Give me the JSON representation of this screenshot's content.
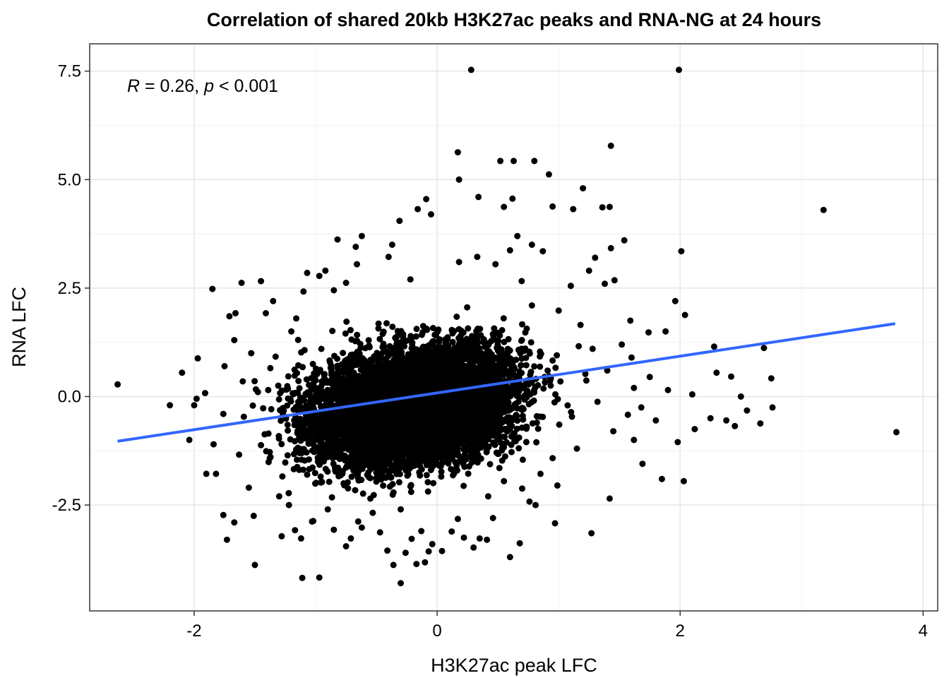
{
  "chart_data": {
    "type": "scatter",
    "title": "Correlation of shared 20kb H3K27ac peaks and RNA-NG  at 24 hours",
    "xlabel": "H3K27ac peak LFC",
    "ylabel": "RNA LFC",
    "annotation": {
      "r_symbol": "R",
      "r_text": " = 0.26, ",
      "p_symbol": "p",
      "p_text": " < 0.001"
    },
    "xlim": [
      -2.86,
      4.12
    ],
    "ylim": [
      -4.94,
      8.13
    ],
    "x_ticks": [
      {
        "value": -2,
        "label": "-2"
      },
      {
        "value": 0,
        "label": "0"
      },
      {
        "value": 2,
        "label": "2"
      },
      {
        "value": 4,
        "label": "4"
      }
    ],
    "y_ticks": [
      {
        "value": -2.5,
        "label": "-2.5"
      },
      {
        "value": 0,
        "label": "0.0"
      },
      {
        "value": 2.5,
        "label": "2.5"
      },
      {
        "value": 5,
        "label": "5.0"
      },
      {
        "value": 7.5,
        "label": "7.5"
      }
    ],
    "grid": true,
    "point_color": "#000000",
    "trend_color": "#3366FF",
    "trendline": {
      "x": [
        -2.63,
        3.77
      ],
      "y": [
        -1.03,
        1.68
      ]
    },
    "dense_core": [
      {
        "x": -0.25,
        "y": -0.05,
        "sx": 0.55,
        "sy": 0.8
      },
      {
        "x": 0.05,
        "y": 0.25,
        "sx": 0.45,
        "sy": 0.7
      },
      {
        "x": -0.55,
        "y": -0.55,
        "sx": 0.4,
        "sy": 0.75
      },
      {
        "x": -0.1,
        "y": -0.8,
        "sx": 0.45,
        "sy": 0.55
      }
    ],
    "points": [
      [
        -2.63,
        0.28
      ],
      [
        -2.04,
        -1.0
      ],
      [
        -1.97,
        0.88
      ],
      [
        -2.1,
        0.55
      ],
      [
        -1.85,
        2.48
      ],
      [
        -1.82,
        -1.78
      ],
      [
        -1.9,
        -1.78
      ],
      [
        -1.76,
        -2.73
      ],
      [
        -1.73,
        -3.3
      ],
      [
        -1.5,
        -3.88
      ],
      [
        -1.67,
        -2.9
      ],
      [
        -1.61,
        2.62
      ],
      [
        -1.51,
        -2.75
      ],
      [
        -1.45,
        2.66
      ],
      [
        -1.71,
        1.85
      ],
      [
        -1.66,
        1.92
      ],
      [
        -1.67,
        1.3
      ],
      [
        -1.53,
        1.0
      ],
      [
        -2.0,
        -0.2
      ],
      [
        -1.63,
        -1.34
      ],
      [
        -1.3,
        -2.3
      ],
      [
        -1.22,
        -2.5
      ],
      [
        -1.17,
        -3.08
      ],
      [
        -1.12,
        -3.27
      ],
      [
        -1.03,
        -2.88
      ],
      [
        -1.11,
        -4.18
      ],
      [
        -0.97,
        -4.17
      ],
      [
        -1.02,
        -2.87
      ],
      [
        -1.07,
        -1.8
      ],
      [
        -0.85,
        -3.07
      ],
      [
        -0.75,
        -3.45
      ],
      [
        -0.71,
        -3.27
      ],
      [
        -0.65,
        -2.88
      ],
      [
        -0.62,
        -3.02
      ],
      [
        -0.53,
        -2.68
      ],
      [
        -0.47,
        -3.13
      ],
      [
        -0.41,
        -3.55
      ],
      [
        -0.36,
        -3.88
      ],
      [
        -0.3,
        -4.3
      ],
      [
        -0.26,
        -3.6
      ],
      [
        -0.21,
        -3.28
      ],
      [
        -0.17,
        -3.86
      ],
      [
        -0.13,
        -3.1
      ],
      [
        -0.07,
        -3.57
      ],
      [
        -0.04,
        -3.4
      ],
      [
        -0.1,
        -3.82
      ],
      [
        0.04,
        -3.56
      ],
      [
        0.12,
        -3.11
      ],
      [
        0.17,
        -2.82
      ],
      [
        0.22,
        -3.25
      ],
      [
        0.3,
        -3.48
      ],
      [
        0.35,
        -3.27
      ],
      [
        0.41,
        -3.3
      ],
      [
        0.46,
        -2.8
      ],
      [
        0.6,
        -3.7
      ],
      [
        0.68,
        -3.38
      ],
      [
        0.76,
        -2.42
      ],
      [
        0.81,
        -2.5
      ],
      [
        0.97,
        -2.92
      ],
      [
        1.27,
        -3.15
      ],
      [
        1.42,
        -2.35
      ],
      [
        1.62,
        -1.0
      ],
      [
        1.69,
        -1.55
      ],
      [
        1.85,
        -1.9
      ],
      [
        1.98,
        -1.05
      ],
      [
        2.03,
        -1.95
      ],
      [
        2.12,
        -0.75
      ],
      [
        2.25,
        -0.5
      ],
      [
        2.38,
        -0.55
      ],
      [
        2.45,
        -0.68
      ],
      [
        2.55,
        -0.32
      ],
      [
        2.66,
        -0.62
      ],
      [
        2.76,
        -0.25
      ],
      [
        3.78,
        -0.82
      ],
      [
        2.42,
        0.46
      ],
      [
        2.75,
        0.42
      ],
      [
        2.3,
        0.55
      ],
      [
        2.28,
        1.15
      ],
      [
        2.69,
        1.12
      ],
      [
        2.01,
        3.35
      ],
      [
        1.96,
        2.2
      ],
      [
        2.04,
        1.88
      ],
      [
        1.88,
        1.5
      ],
      [
        1.74,
        1.48
      ],
      [
        1.59,
        1.75
      ],
      [
        1.46,
        2.68
      ],
      [
        1.38,
        2.6
      ],
      [
        1.43,
        3.42
      ],
      [
        1.54,
        3.6
      ],
      [
        1.3,
        3.2
      ],
      [
        1.25,
        2.9
      ],
      [
        1.36,
        4.36
      ],
      [
        1.42,
        4.37
      ],
      [
        1.12,
        4.32
      ],
      [
        1.2,
        4.8
      ],
      [
        0.95,
        4.38
      ],
      [
        0.92,
        5.12
      ],
      [
        0.8,
        5.43
      ],
      [
        0.63,
        5.43
      ],
      [
        0.52,
        5.43
      ],
      [
        0.17,
        5.63
      ],
      [
        0.18,
        5.0
      ],
      [
        0.34,
        4.6
      ],
      [
        0.55,
        4.37
      ],
      [
        0.62,
        4.56
      ],
      [
        0.66,
        3.7
      ],
      [
        0.6,
        3.37
      ],
      [
        0.78,
        3.5
      ],
      [
        0.87,
        3.35
      ],
      [
        0.28,
        7.53
      ],
      [
        1.43,
        5.78
      ],
      [
        1.99,
        7.53
      ],
      [
        3.18,
        4.3
      ],
      [
        -0.09,
        4.55
      ],
      [
        -0.16,
        4.32
      ],
      [
        -0.31,
        4.05
      ],
      [
        -0.37,
        3.5
      ],
      [
        -0.62,
        3.7
      ],
      [
        -0.82,
        3.62
      ],
      [
        -0.67,
        3.45
      ],
      [
        -1.07,
        2.85
      ],
      [
        -0.97,
        2.78
      ],
      [
        -0.92,
        2.9
      ],
      [
        -0.66,
        3.05
      ],
      [
        -0.85,
        2.45
      ],
      [
        -0.75,
        2.62
      ],
      [
        -0.05,
        4.2
      ],
      [
        -1.35,
        2.2
      ],
      [
        -1.41,
        1.92
      ],
      [
        -1.16,
        1.8
      ],
      [
        -1.55,
        -2.1
      ],
      [
        -1.25,
        -1.52
      ],
      [
        -1.84,
        -1.1
      ],
      [
        -1.91,
        0.08
      ],
      [
        -1.75,
        0.7
      ],
      [
        -1.2,
        1.5
      ],
      [
        -1.42,
        -0.87
      ],
      [
        -1.33,
        0.92
      ],
      [
        1.1,
        2.55
      ],
      [
        0.78,
        2.1
      ],
      [
        1.0,
        1.98
      ],
      [
        1.18,
        1.65
      ],
      [
        1.52,
        1.2
      ],
      [
        1.68,
        -0.25
      ],
      [
        1.8,
        -0.55
      ],
      [
        1.57,
        -0.42
      ],
      [
        1.45,
        -0.8
      ],
      [
        1.75,
        0.45
      ],
      [
        1.62,
        0.2
      ],
      [
        1.32,
        -0.12
      ],
      [
        1.15,
        -1.2
      ],
      [
        0.95,
        -1.42
      ],
      [
        0.85,
        -1.78
      ],
      [
        0.7,
        -2.12
      ],
      [
        0.42,
        -2.3
      ],
      [
        -1.28,
        -3.22
      ],
      [
        -0.55,
        -2.35
      ],
      [
        -0.9,
        -2.6
      ],
      [
        -1.45,
        -1.12
      ],
      [
        -1.1,
        2.42
      ],
      [
        0.48,
        3.05
      ],
      [
        0.33,
        3.22
      ],
      [
        -0.4,
        3.22
      ],
      [
        0.18,
        3.1
      ],
      [
        -0.22,
        2.7
      ],
      [
        1.6,
        0.9
      ],
      [
        1.9,
        0.15
      ],
      [
        2.1,
        0.05
      ],
      [
        1.4,
        0.6
      ],
      [
        1.28,
        1.1
      ],
      [
        2.5,
        0.0
      ],
      [
        -2.2,
        -0.2
      ],
      [
        -1.98,
        -0.05
      ],
      [
        -1.76,
        -0.4
      ],
      [
        -1.6,
        0.35
      ],
      [
        -1.39,
        0.15
      ],
      [
        0.99,
        -2.05
      ],
      [
        0.55,
        -1.95
      ],
      [
        -0.77,
        -2.0
      ],
      [
        -0.3,
        -2.6
      ]
    ]
  }
}
